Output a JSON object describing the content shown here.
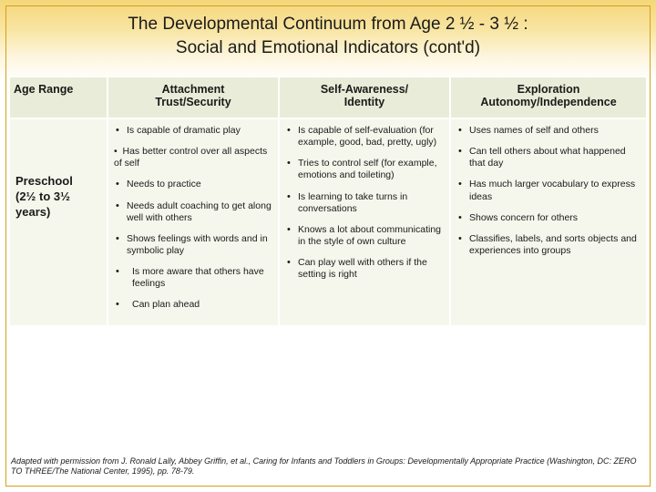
{
  "colors": {
    "header_grad_top": "#f5d67a",
    "header_grad_bottom": "#ffffff",
    "frame_border": "#d4a017",
    "th_bg": "#e9ecd8",
    "td_bg": "#f5f7ec",
    "text": "#1a1a1a"
  },
  "title_line1": "The Developmental Continuum from Age 2 ½ - 3 ½ :",
  "title_line2": "Social and Emotional Indicators  (cont'd)",
  "columns": {
    "c0": "Age Range",
    "c1_l1": "Attachment",
    "c1_l2": "Trust/Security",
    "c2_l1": "Self-Awareness/",
    "c2_l2": "Identity",
    "c3_l1": "Exploration",
    "c3_l2": "Autonomy/Independence"
  },
  "row_label_l1": "Preschool",
  "row_label_l2": "(2½ to 3½",
  "row_label_l3": "years)",
  "col1_items": [
    "Is capable of dramatic play",
    "Has better control over all aspects of self",
    "Needs to practice",
    "Needs adult coaching to get along well with others",
    "Shows feelings with words and in symbolic play",
    "Is more aware that others have feelings",
    "Can plan ahead"
  ],
  "col2_items": [
    "Is capable of self-evaluation (for example, good, bad, pretty, ugly)",
    "Tries to control self (for example, emotions and toileting)",
    "Is learning to take turns in conversations",
    "Knows a lot about communicating in the style of own culture",
    "Can play well with others if the setting is right"
  ],
  "col3_items": [
    "Uses names of self and others",
    "Can tell others about what happened that day",
    "Has much larger vocabulary to express ideas",
    "Shows concern for others",
    "Classifies, labels, and sorts objects and experiences into groups"
  ],
  "footer_text": "Adapted with permission from J. Ronald Lally, Abbey Griffin, et al., Caring for Infants and Toddlers in Groups: Developmentally Appropriate Practice (Washington, DC: ZERO TO THREE/The National Center, 1995), pp. 78-79."
}
